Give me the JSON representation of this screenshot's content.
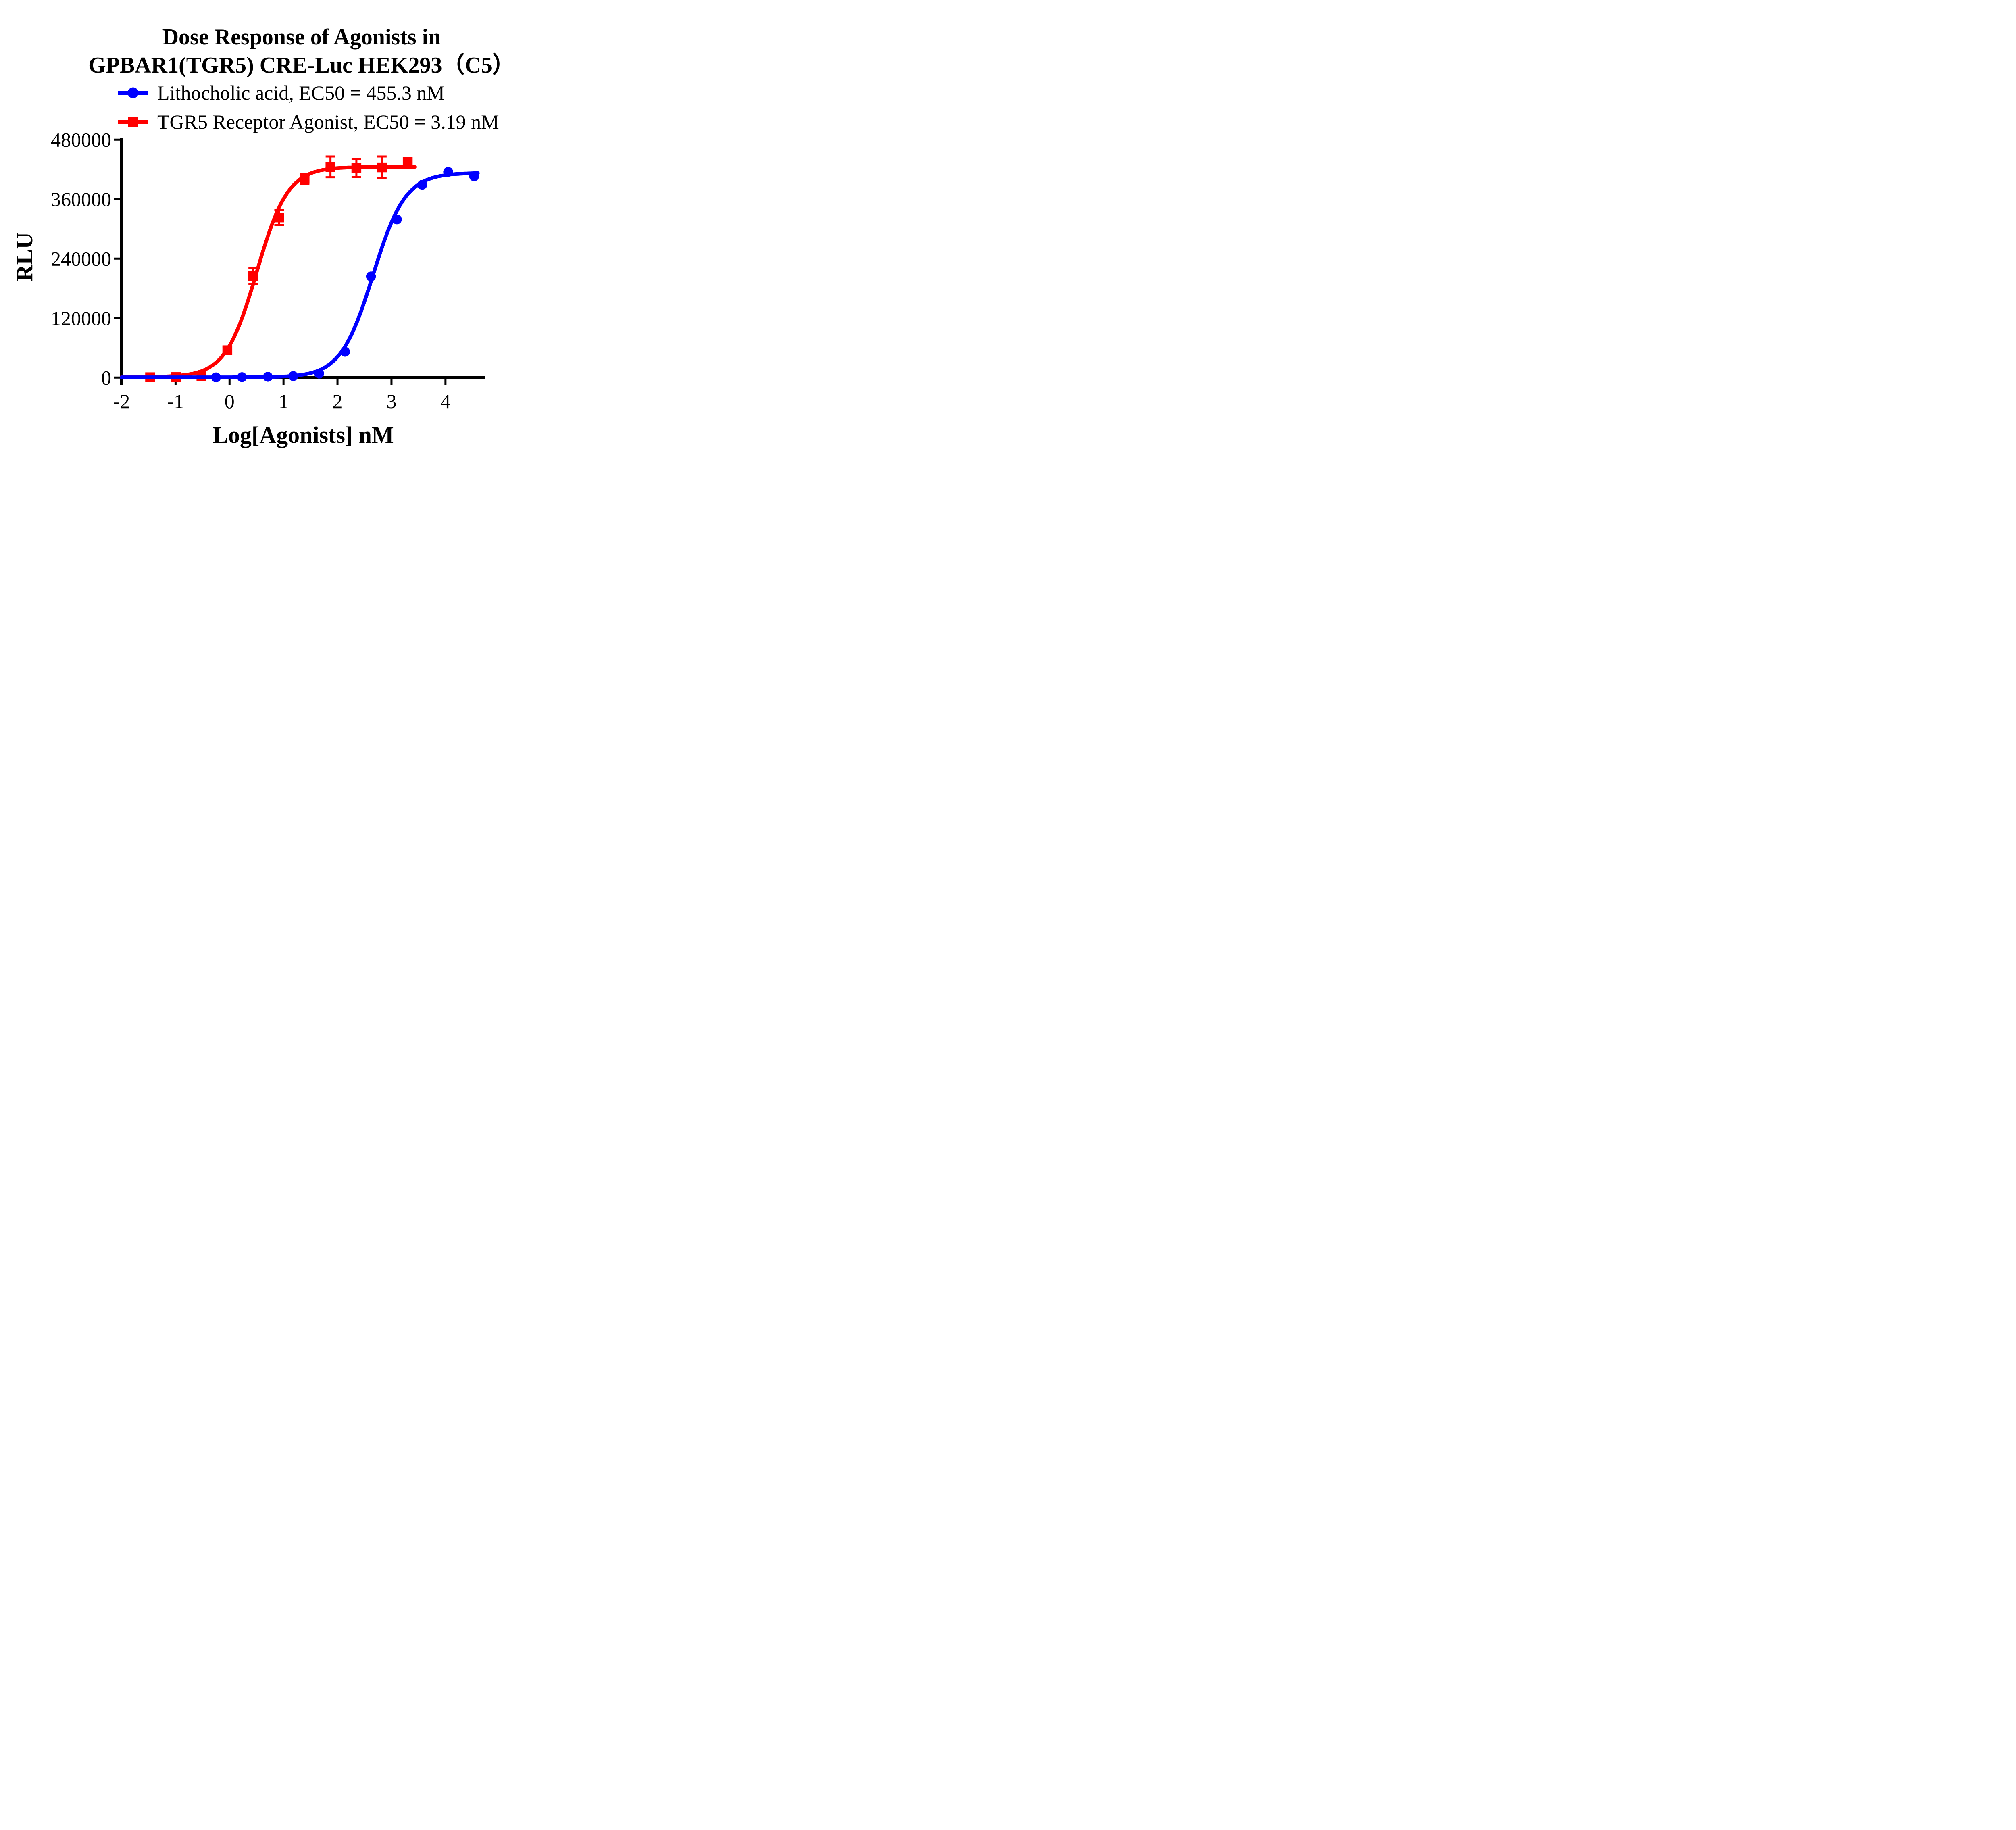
{
  "chart_data": {
    "type": "scatter",
    "title_line1": "Dose Response of Agonists in",
    "title_line2": "GPBAR1(TGR5) CRE-Luc HEK293（C5）",
    "xlabel": "Log[Agonists] nM",
    "ylabel": "RLU",
    "xlim": [
      -2,
      4.65
    ],
    "ylim": [
      0,
      480000
    ],
    "xticks": [
      -2,
      -1,
      0,
      1,
      2,
      3,
      4
    ],
    "yticks": [
      0,
      120000,
      240000,
      360000,
      480000
    ],
    "grid": false,
    "legend_position": "top-left-above-plot",
    "axis_color": "#000000",
    "background_color": "#ffffff",
    "series": [
      {
        "name": "Lithocholic acid, EC50 = 455.3 nM",
        "slug": "lithocholic-acid",
        "ec50_nM": 455.3,
        "color": "#0000ff",
        "marker": "circle",
        "x": [
          -0.25,
          0.23,
          0.71,
          1.18,
          1.66,
          2.14,
          2.62,
          3.1,
          3.57,
          4.05,
          4.53
        ],
        "y": [
          300,
          800,
          1500,
          3000,
          8000,
          52000,
          204000,
          319000,
          389000,
          415000,
          406000
        ],
        "yerr": [
          0,
          0,
          0,
          0,
          0,
          0,
          0,
          0,
          0,
          0,
          0
        ],
        "fit": {
          "bottom": 500,
          "top": 413000,
          "logEC50": 2.658,
          "hill": 1.45,
          "draw_from": -2.0,
          "draw_to": 4.62
        }
      },
      {
        "name": "TGR5 Receptor Agonist, EC50 = 3.19 nM",
        "slug": "tgr5-receptor-agonist",
        "ec50_nM": 3.19,
        "color": "#ff0000",
        "marker": "square",
        "x": [
          -1.47,
          -0.99,
          -0.52,
          -0.04,
          0.44,
          0.92,
          1.39,
          1.87,
          2.35,
          2.82,
          3.3
        ],
        "y": [
          500,
          800,
          3000,
          55000,
          205000,
          323000,
          401000,
          425000,
          423000,
          424000,
          435000
        ],
        "yerr": [
          0,
          0,
          0,
          6000,
          16000,
          15000,
          10000,
          21000,
          18000,
          22000,
          0
        ],
        "fit": {
          "bottom": 1000,
          "top": 425000,
          "logEC50": 0.504,
          "hill": 1.5,
          "draw_from": -2.0,
          "draw_to": 3.44
        }
      }
    ]
  }
}
